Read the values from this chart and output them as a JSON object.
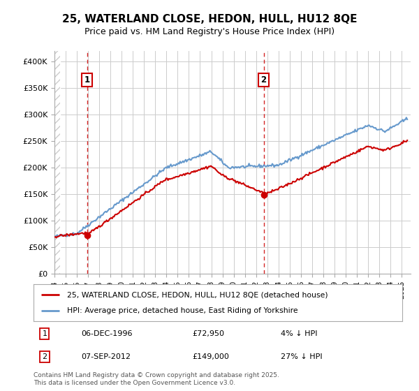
{
  "title": "25, WATERLAND CLOSE, HEDON, HULL, HU12 8QE",
  "subtitle": "Price paid vs. HM Land Registry's House Price Index (HPI)",
  "ylabel_ticks": [
    "£0",
    "£50K",
    "£100K",
    "£150K",
    "£200K",
    "£250K",
    "£300K",
    "£350K",
    "£400K"
  ],
  "ylim": [
    0,
    420000
  ],
  "xlim_start": 1994.0,
  "xlim_end": 2025.8,
  "purchase1_date": 1996.92,
  "purchase1_label": "1",
  "purchase1_price": 72950,
  "purchase1_text": "06-DEC-1996",
  "purchase1_amount": "£72,950",
  "purchase1_hpi": "4% ↓ HPI",
  "purchase2_date": 2012.68,
  "purchase2_label": "2",
  "purchase2_price": 149000,
  "purchase2_text": "07-SEP-2012",
  "purchase2_amount": "£149,000",
  "purchase2_hpi": "27% ↓ HPI",
  "legend_line1": "25, WATERLAND CLOSE, HEDON, HULL, HU12 8QE (detached house)",
  "legend_line2": "HPI: Average price, detached house, East Riding of Yorkshire",
  "footnote": "Contains HM Land Registry data © Crown copyright and database right 2025.\nThis data is licensed under the Open Government Licence v3.0.",
  "line_color_red": "#cc0000",
  "line_color_blue": "#6699cc",
  "background_color": "#ffffff",
  "hatch_color": "#cccccc",
  "grid_color": "#cccccc"
}
